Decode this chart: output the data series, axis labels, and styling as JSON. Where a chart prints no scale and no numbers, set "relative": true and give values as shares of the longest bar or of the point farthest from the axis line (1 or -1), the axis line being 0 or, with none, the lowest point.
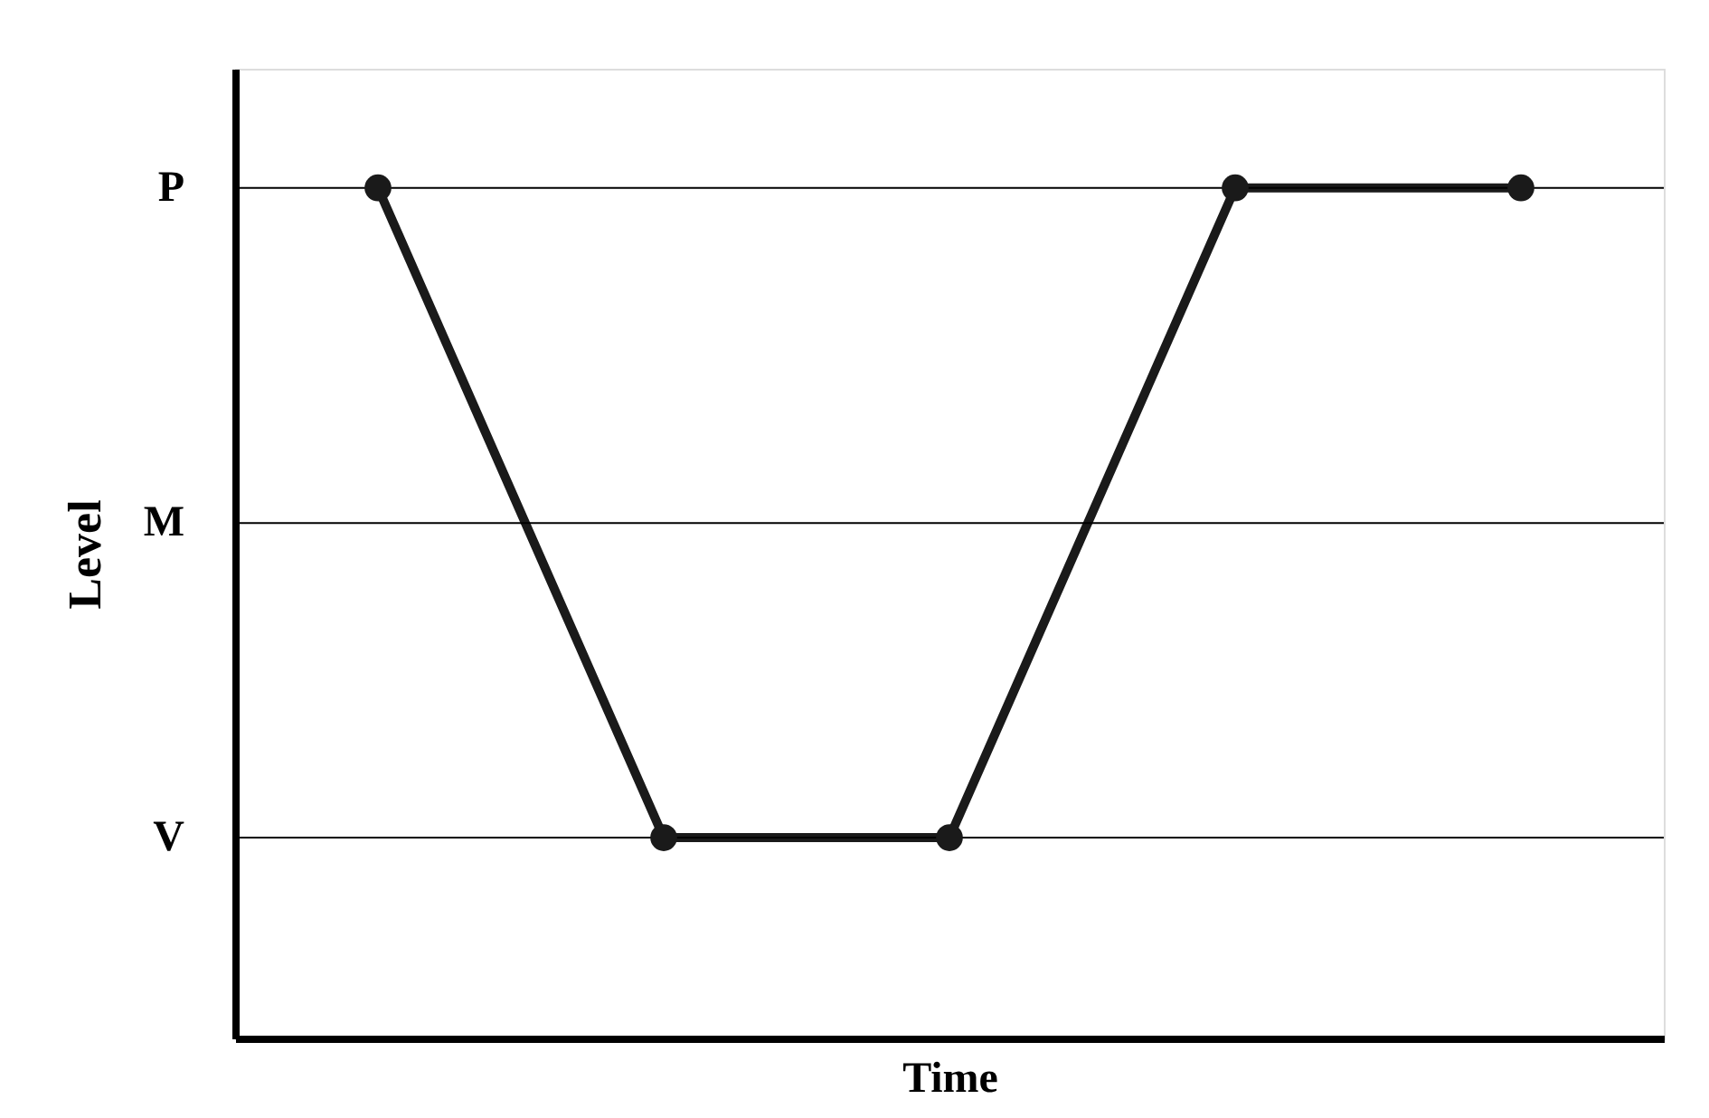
{
  "chart_data": {
    "type": "line",
    "xlabel": "Time",
    "ylabel": "Level",
    "relative": true,
    "categories": [
      null,
      null,
      null,
      null,
      null
    ],
    "series": [
      {
        "color": "#1a1a1a",
        "values": [
          1,
          0.236,
          0.236,
          1,
          1
        ]
      }
    ],
    "ref_lines": [
      {
        "axis": "y",
        "value": 1,
        "label": "P",
        "color": "#000000",
        "line_style": "solid"
      },
      {
        "axis": "y",
        "value": 0.606,
        "label": "M",
        "color": "#000000",
        "line_style": "solid"
      },
      {
        "axis": "y",
        "value": 0.236,
        "label": "V",
        "color": "#000000",
        "line_style": "solid"
      }
    ],
    "tick_labels": false,
    "marker": "circle",
    "line_style": "solid"
  }
}
